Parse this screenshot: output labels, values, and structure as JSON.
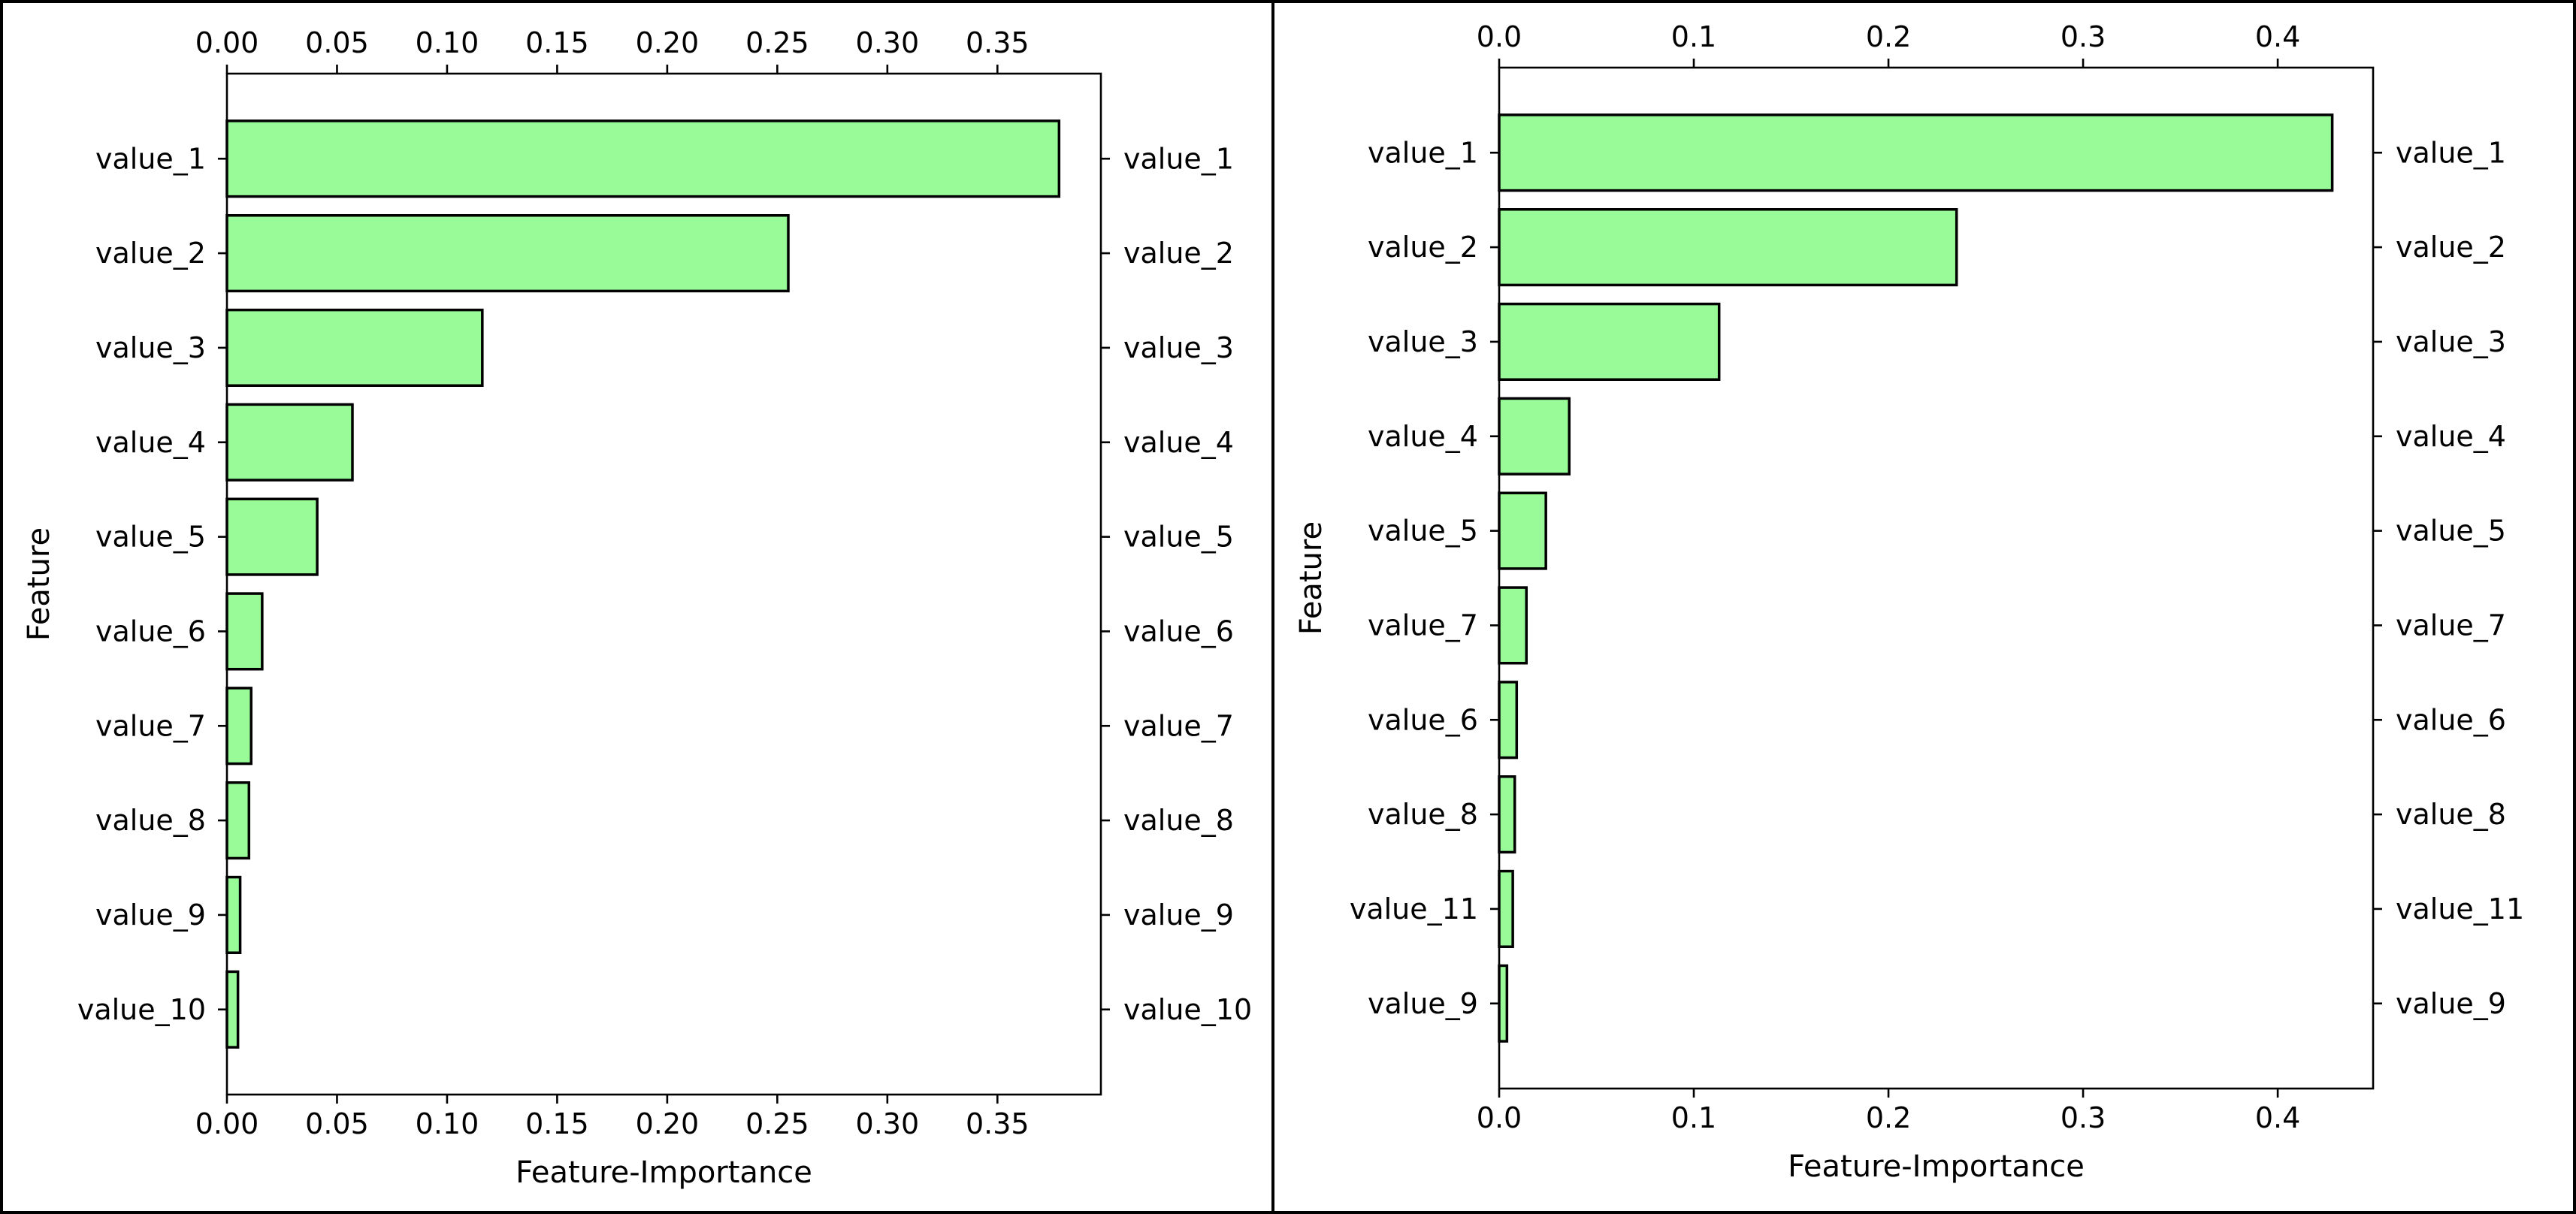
{
  "chart_data": [
    {
      "type": "bar",
      "orientation": "horizontal",
      "categories": [
        "value_1",
        "value_2",
        "value_3",
        "value_4",
        "value_5",
        "value_6",
        "value_7",
        "value_8",
        "value_9",
        "value_10"
      ],
      "values": [
        0.378,
        0.255,
        0.116,
        0.057,
        0.041,
        0.016,
        0.011,
        0.01,
        0.006,
        0.005
      ],
      "title": "",
      "xlabel": "Feature-Importance",
      "ylabel": "Feature",
      "xlim": [
        0,
        0.397
      ],
      "x_ticks": [
        "0.00",
        "0.05",
        "0.10",
        "0.15",
        "0.20",
        "0.25",
        "0.30",
        "0.35"
      ],
      "x_tick_values": [
        0,
        0.05,
        0.1,
        0.15,
        0.2,
        0.25,
        0.3,
        0.35
      ],
      "tick_labels_top_and_bottom": true,
      "category_labels_left_and_right": true,
      "grid": false,
      "bar_color": "#98fb98",
      "edge_color": "#000000"
    },
    {
      "type": "bar",
      "orientation": "horizontal",
      "categories": [
        "value_1",
        "value_2",
        "value_3",
        "value_4",
        "value_5",
        "value_7",
        "value_6",
        "value_8",
        "value_11",
        "value_9"
      ],
      "values": [
        0.428,
        0.235,
        0.113,
        0.036,
        0.024,
        0.014,
        0.009,
        0.008,
        0.007,
        0.004
      ],
      "title": "",
      "xlabel": "Feature-Importance",
      "ylabel": "Feature",
      "xlim": [
        0,
        0.449
      ],
      "x_ticks": [
        "0.0",
        "0.1",
        "0.2",
        "0.3",
        "0.4"
      ],
      "x_tick_values": [
        0,
        0.1,
        0.2,
        0.3,
        0.4
      ],
      "tick_labels_top_and_bottom": true,
      "category_labels_left_and_right": true,
      "grid": false,
      "bar_color": "#98fb98",
      "edge_color": "#000000"
    }
  ]
}
